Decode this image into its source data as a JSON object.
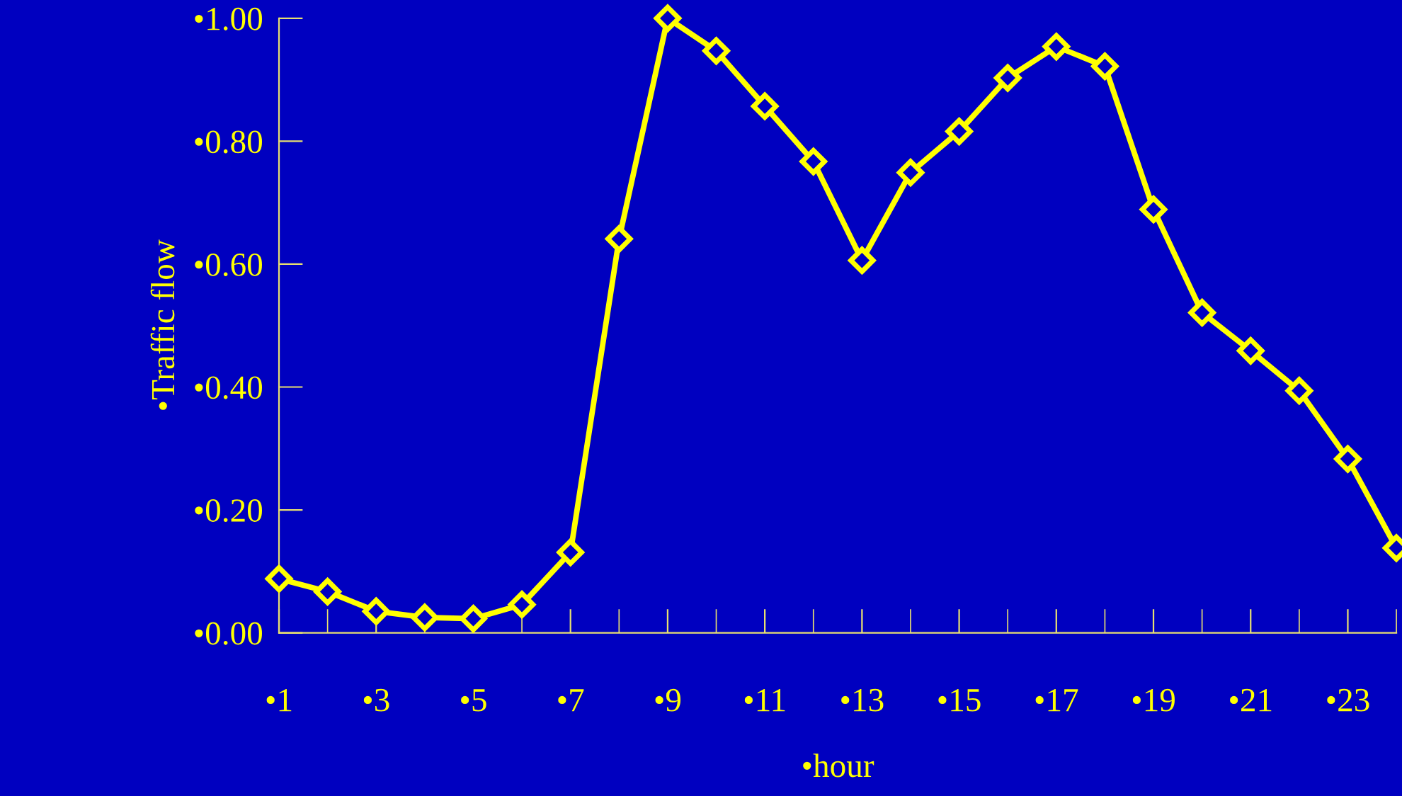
{
  "chart_data": {
    "type": "line",
    "xlabel": "•hour",
    "ylabel": "•Traffic flow",
    "x": [
      1,
      2,
      3,
      4,
      5,
      6,
      7,
      8,
      9,
      10,
      11,
      12,
      13,
      14,
      15,
      16,
      17,
      18,
      19,
      20,
      21,
      22,
      23,
      24
    ],
    "series": [
      {
        "color": "#ffff00",
        "values": [
          0.088,
          0.067,
          0.035,
          0.025,
          0.023,
          0.046,
          0.131,
          0.641,
          1.0,
          0.947,
          0.857,
          0.767,
          0.606,
          0.749,
          0.816,
          0.903,
          0.954,
          0.922,
          0.689,
          0.521,
          0.459,
          0.394,
          0.283,
          0.138
        ]
      }
    ],
    "xlim": [
      1,
      24
    ],
    "xticks": [
      {
        "value": 1,
        "label": "•1"
      },
      {
        "value": 3,
        "label": "•3"
      },
      {
        "value": 5,
        "label": "•5"
      },
      {
        "value": 7,
        "label": "•7"
      },
      {
        "value": 9,
        "label": "•9"
      },
      {
        "value": 11,
        "label": "•11"
      },
      {
        "value": 13,
        "label": "•13"
      },
      {
        "value": 15,
        "label": "•15"
      },
      {
        "value": 17,
        "label": "•17"
      },
      {
        "value": 19,
        "label": "•19"
      },
      {
        "value": 21,
        "label": "•21"
      },
      {
        "value": 23,
        "label": "•23"
      }
    ],
    "ylim": [
      0,
      1.0
    ],
    "yticks": [
      {
        "value": 0,
        "label": "•0.00"
      },
      {
        "value": 0.2,
        "label": "•0.20"
      },
      {
        "value": 0.4,
        "label": "•0.40"
      },
      {
        "value": 0.6,
        "label": "•0.60"
      },
      {
        "value": 0.8,
        "label": "•0.80"
      },
      {
        "value": 1.0,
        "label": "•1.00"
      }
    ],
    "marker": "diamond",
    "line_style": "solid",
    "grid": false,
    "legend": false
  }
}
